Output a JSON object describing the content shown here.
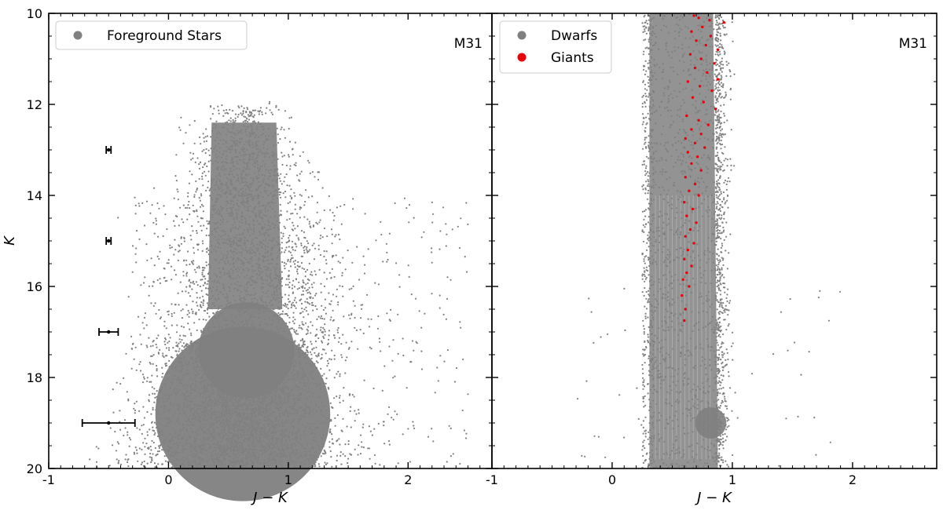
{
  "chart_data": [
    {
      "type": "scatter",
      "panel_label": "M31",
      "xlabel": "J − K",
      "ylabel": "K",
      "xlim": [
        -1,
        2.7
      ],
      "ylim": [
        20,
        10
      ],
      "y_inverted": true,
      "x_ticks": [
        -1,
        0,
        1,
        2
      ],
      "x_tick_labels": [
        "-1",
        "0",
        "1",
        "2"
      ],
      "y_ticks": [
        10,
        12,
        14,
        16,
        18,
        20
      ],
      "y_tick_labels": [
        "10",
        "12",
        "14",
        "16",
        "18",
        "20"
      ],
      "legend_position": "top-left",
      "legend_entries": [
        {
          "label": "Foreground Stars",
          "color": "#808080"
        }
      ],
      "series": [
        {
          "name": "Foreground Stars",
          "color": "#808080",
          "distribution_description": "dense cloud: narrow vertical plume from K≈12 to 17 spanning J−K≈0.3–0.9, widening into a broad base at K≈17.5–20 spanning J−K≈0–1.5"
        }
      ],
      "error_bars": [
        {
          "x": -0.5,
          "y": 13,
          "xerr": 0.02
        },
        {
          "x": -0.5,
          "y": 15,
          "xerr": 0.02
        },
        {
          "x": -0.5,
          "y": 17,
          "xerr": 0.08
        },
        {
          "x": -0.5,
          "y": 19,
          "xerr": 0.22
        }
      ]
    },
    {
      "type": "scatter",
      "panel_label": "M31",
      "xlabel": "J − K",
      "ylabel": "",
      "xlim": [
        -1,
        2.7
      ],
      "ylim": [
        20,
        10
      ],
      "y_inverted": true,
      "x_ticks": [
        -1,
        0,
        1,
        2
      ],
      "x_tick_labels": [
        "-1",
        "0",
        "1",
        "2"
      ],
      "legend_position": "top-left",
      "legend_entries": [
        {
          "label": "Dwarfs",
          "color": "#808080"
        },
        {
          "label": "Giants",
          "color": "#e8000b"
        }
      ],
      "series": [
        {
          "name": "Dwarfs",
          "color": "#808080",
          "distribution_description": "dense vertical band from K=10 to 20 spanning J−K≈0.3–0.9 with sharp left edge at 0.3, thickening toward the faint end"
        },
        {
          "name": "Giants",
          "color": "#e8000b",
          "points": [
            [
              0.68,
              10.05
            ],
            [
              0.72,
              10.1
            ],
            [
              0.81,
              10.15
            ],
            [
              0.93,
              10.2
            ],
            [
              0.75,
              10.3
            ],
            [
              0.66,
              10.4
            ],
            [
              0.82,
              10.5
            ],
            [
              0.7,
              10.6
            ],
            [
              0.78,
              10.7
            ],
            [
              0.88,
              10.8
            ],
            [
              0.65,
              10.9
            ],
            [
              0.74,
              11.0
            ],
            [
              0.85,
              11.1
            ],
            [
              0.69,
              11.2
            ],
            [
              0.79,
              11.3
            ],
            [
              0.88,
              11.45
            ],
            [
              0.63,
              11.5
            ],
            [
              0.73,
              11.6
            ],
            [
              0.83,
              11.7
            ],
            [
              0.67,
              11.85
            ],
            [
              0.76,
              11.95
            ],
            [
              0.86,
              12.1
            ],
            [
              0.62,
              12.25
            ],
            [
              0.72,
              12.35
            ],
            [
              0.8,
              12.45
            ],
            [
              0.66,
              12.55
            ],
            [
              0.74,
              12.65
            ],
            [
              0.61,
              12.75
            ],
            [
              0.69,
              12.85
            ],
            [
              0.77,
              12.95
            ],
            [
              0.63,
              13.05
            ],
            [
              0.71,
              13.15
            ],
            [
              0.66,
              13.3
            ],
            [
              0.74,
              13.45
            ],
            [
              0.61,
              13.6
            ],
            [
              0.69,
              13.75
            ],
            [
              0.64,
              13.9
            ],
            [
              0.72,
              14.0
            ],
            [
              0.6,
              14.15
            ],
            [
              0.67,
              14.3
            ],
            [
              0.62,
              14.45
            ],
            [
              0.7,
              14.6
            ],
            [
              0.65,
              14.75
            ],
            [
              0.61,
              14.9
            ],
            [
              0.68,
              15.05
            ],
            [
              0.63,
              15.2
            ],
            [
              0.6,
              15.4
            ],
            [
              0.66,
              15.55
            ],
            [
              0.62,
              15.7
            ],
            [
              0.59,
              15.85
            ],
            [
              0.64,
              16.0
            ],
            [
              0.58,
              16.2
            ],
            [
              0.61,
              16.5
            ],
            [
              0.6,
              16.75
            ]
          ]
        }
      ]
    }
  ]
}
